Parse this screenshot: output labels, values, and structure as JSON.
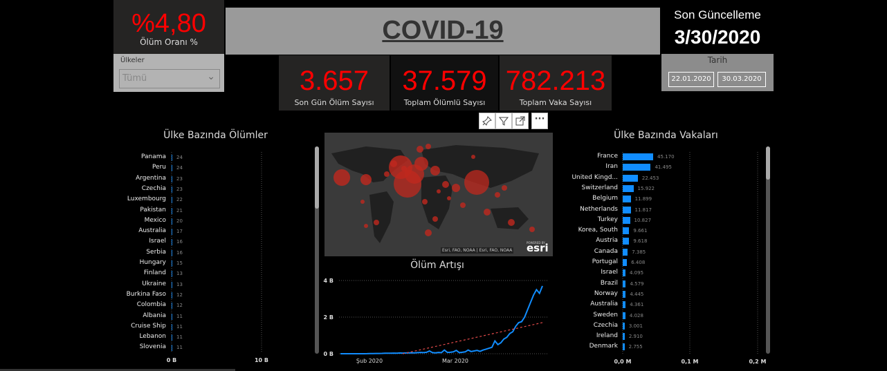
{
  "kpi": {
    "death_rate": {
      "value": "%4,80",
      "label": "Ölüm Oranı %"
    },
    "last_day_deaths": {
      "value": "3.657",
      "label": "Son Gün Ölüm Sayısı"
    },
    "total_deaths": {
      "value": "37.579",
      "label": "Toplam Ölümlü Sayısı"
    },
    "total_cases": {
      "value": "782.213",
      "label": "Toplam Vaka Sayısı"
    }
  },
  "title": "COVID-19",
  "update": {
    "label": "Son Güncelleme",
    "date": "3/30/2020"
  },
  "country_filter": {
    "label": "Ülkeler",
    "value": "Tümü"
  },
  "date_filter": {
    "label": "Tarih",
    "start": "22.01.2020",
    "end": "30.03.2020"
  },
  "visual_toolbar": {
    "pin": "pin-icon",
    "filter": "filter-icon",
    "focus": "focus-mode-icon",
    "more": "more-options-icon"
  },
  "map": {
    "attribution": "Esri, FAO, NOAA | Esri, FAO, NOAA",
    "powered_by": "POWERED BY",
    "logo": "esri"
  },
  "deaths_chart": {
    "title": "Ülke Bazında Ölümler",
    "x_ticks": [
      "0 B",
      "10 B"
    ],
    "categories": [
      "Panama",
      "Peru",
      "Argentina",
      "Czechia",
      "Luxembourg",
      "Pakistan",
      "Mexico",
      "Australia",
      "Israel",
      "Serbia",
      "Hungary",
      "Finland",
      "Ukraine",
      "Burkina Faso",
      "Colombia",
      "Albania",
      "Cruise Ship",
      "Lebanon",
      "Slovenia"
    ],
    "values": [
      "24",
      "24",
      "23",
      "23",
      "22",
      "21",
      "20",
      "17",
      "16",
      "16",
      "15",
      "13",
      "13",
      "12",
      "12",
      "11",
      "11",
      "11",
      "11"
    ]
  },
  "cases_chart": {
    "title": "Ülke Bazında Vakaları",
    "x_ticks": [
      "0,0 M",
      "0,1 M",
      "0,2 M"
    ],
    "categories": [
      "France",
      "Iran",
      "United Kingd...",
      "Switzerland",
      "Belgium",
      "Netherlands",
      "Turkey",
      "Korea, South",
      "Austria",
      "Canada",
      "Portugal",
      "Israel",
      "Brazil",
      "Norway",
      "Australia",
      "Sweden",
      "Czechia",
      "Ireland",
      "Denmark"
    ],
    "labels": [
      "45.170",
      "41.495",
      "22.453",
      "15.922",
      "11.899",
      "11.817",
      "10.827",
      "9.661",
      "9.618",
      "7.385",
      "6.408",
      "4.095",
      "4.579",
      "4.445",
      "4.361",
      "4.028",
      "3.001",
      "2.910",
      "2.755"
    ],
    "values": [
      45170,
      41495,
      22453,
      15922,
      11899,
      11817,
      10827,
      9661,
      9618,
      7385,
      6408,
      4095,
      4579,
      4445,
      4361,
      4028,
      3001,
      2910,
      2755
    ]
  },
  "chart_data": [
    {
      "type": "bar",
      "title": "Ülke Bazında Ölümler",
      "categories": [
        "Panama",
        "Peru",
        "Argentina",
        "Czechia",
        "Luxembourg",
        "Pakistan",
        "Mexico",
        "Australia",
        "Israel",
        "Serbia",
        "Hungary",
        "Finland",
        "Ukraine",
        "Burkina Faso",
        "Colombia",
        "Albania",
        "Cruise Ship",
        "Lebanon",
        "Slovenia"
      ],
      "values": [
        24,
        24,
        23,
        23,
        22,
        21,
        20,
        17,
        16,
        16,
        15,
        13,
        13,
        12,
        12,
        11,
        11,
        11,
        11
      ],
      "xlim": [
        0,
        10000
      ],
      "x_ticks": [
        "0 B",
        "10 B"
      ],
      "orientation": "horizontal"
    },
    {
      "type": "line",
      "title": "Ölüm Artışı",
      "x_ticks": [
        "Şub 2020",
        "Mar 2020"
      ],
      "y_ticks": [
        "0 B",
        "2 B",
        "4 B"
      ],
      "ylim": [
        0,
        4000
      ],
      "series": [
        {
          "values": [
            0,
            0,
            0,
            0,
            0,
            0,
            0,
            0,
            0,
            5,
            10,
            10,
            15,
            15,
            20,
            25,
            25,
            30,
            35,
            30,
            40,
            35,
            40,
            45,
            50,
            50,
            60,
            70,
            60,
            80,
            150,
            60,
            50,
            70,
            60,
            200,
            70,
            80,
            100,
            180,
            60,
            80,
            100,
            200,
            120,
            150,
            180,
            130,
            200,
            250,
            300,
            350,
            700,
            500,
            600,
            800,
            900,
            1100,
            1200,
            1500,
            1700,
            1750,
            2000,
            2400,
            2800,
            3200,
            3500,
            3300,
            3700
          ]
        },
        {
          "values": [
            0,
            1700
          ]
        }
      ]
    },
    {
      "type": "bar",
      "title": "Ülke Bazında Vakaları",
      "categories": [
        "France",
        "Iran",
        "United Kingd...",
        "Switzerland",
        "Belgium",
        "Netherlands",
        "Turkey",
        "Korea, South",
        "Austria",
        "Canada",
        "Portugal",
        "Israel",
        "Brazil",
        "Norway",
        "Australia",
        "Sweden",
        "Czechia",
        "Ireland",
        "Denmark"
      ],
      "values": [
        45170,
        41495,
        22453,
        15922,
        11899,
        11817,
        10827,
        9661,
        9618,
        7385,
        6408,
        4095,
        4579,
        4445,
        4361,
        4028,
        3001,
        2910,
        2755
      ],
      "xlim": [
        0,
        200000
      ],
      "x_ticks": [
        "0,0 M",
        "0,1 M",
        "0,2 M"
      ],
      "orientation": "horizontal"
    }
  ],
  "growth_chart": {
    "title": "Ölüm Artışı",
    "x_ticks": [
      "Şub 2020",
      "Mar 2020"
    ],
    "y_ticks": [
      "0 B",
      "2 B",
      "4 B"
    ]
  },
  "colors": {
    "kpi": "#ff0000",
    "bar": "#118dff",
    "line": "#118dff",
    "trend": "#e44b4b",
    "bubble": "#c0281e"
  }
}
